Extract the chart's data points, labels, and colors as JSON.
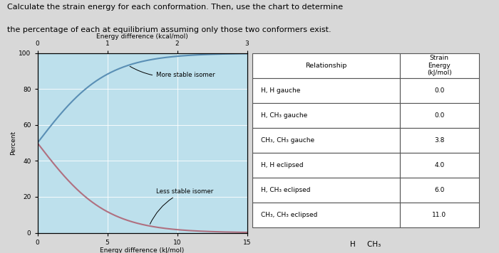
{
  "title_line1": "Calculate the strain energy for each conformation. Then, use the chart to determine",
  "title_line2": "the percentage of each at equilibrium assuming only those two conformers exist.",
  "chart": {
    "x_kj_min": 0,
    "x_kj_max": 15,
    "x_kcal_min": 0,
    "x_kcal_max": 3,
    "y_min": 0,
    "y_max": 100,
    "xlabel_bottom": "Energy difference (kJ/mol)",
    "xlabel_top": "Energy difference (kcal/mol)",
    "ylabel": "Percent",
    "label_more": "More stable isomer",
    "label_less": "Less stable isomer",
    "bg_color": "#bde0ec",
    "line_more_color": "#5a8fb5",
    "line_less_color": "#b07080",
    "yticks": [
      0,
      20,
      40,
      60,
      80,
      100
    ],
    "xticks_kj": [
      0,
      5,
      10,
      15
    ],
    "xticks_kcal": [
      0,
      1,
      2,
      3
    ]
  },
  "table": {
    "col1_header": "Relationship",
    "col2_header": "Strain\nEnergy\n(kJ/mol)",
    "rows": [
      [
        "H, H gauche",
        "0.0"
      ],
      [
        "H, CH₃ gauche",
        "0.0"
      ],
      [
        "CH₃, CH₃ gauche",
        "3.8"
      ],
      [
        "H, H eclipsed",
        "4.0"
      ],
      [
        "H, CH₃ eclipsed",
        "6.0"
      ],
      [
        "CH₃, CH₃ eclipsed",
        "11.0"
      ]
    ]
  },
  "footer_text": "H     CH₃",
  "bg_page": "#d8d8d8"
}
